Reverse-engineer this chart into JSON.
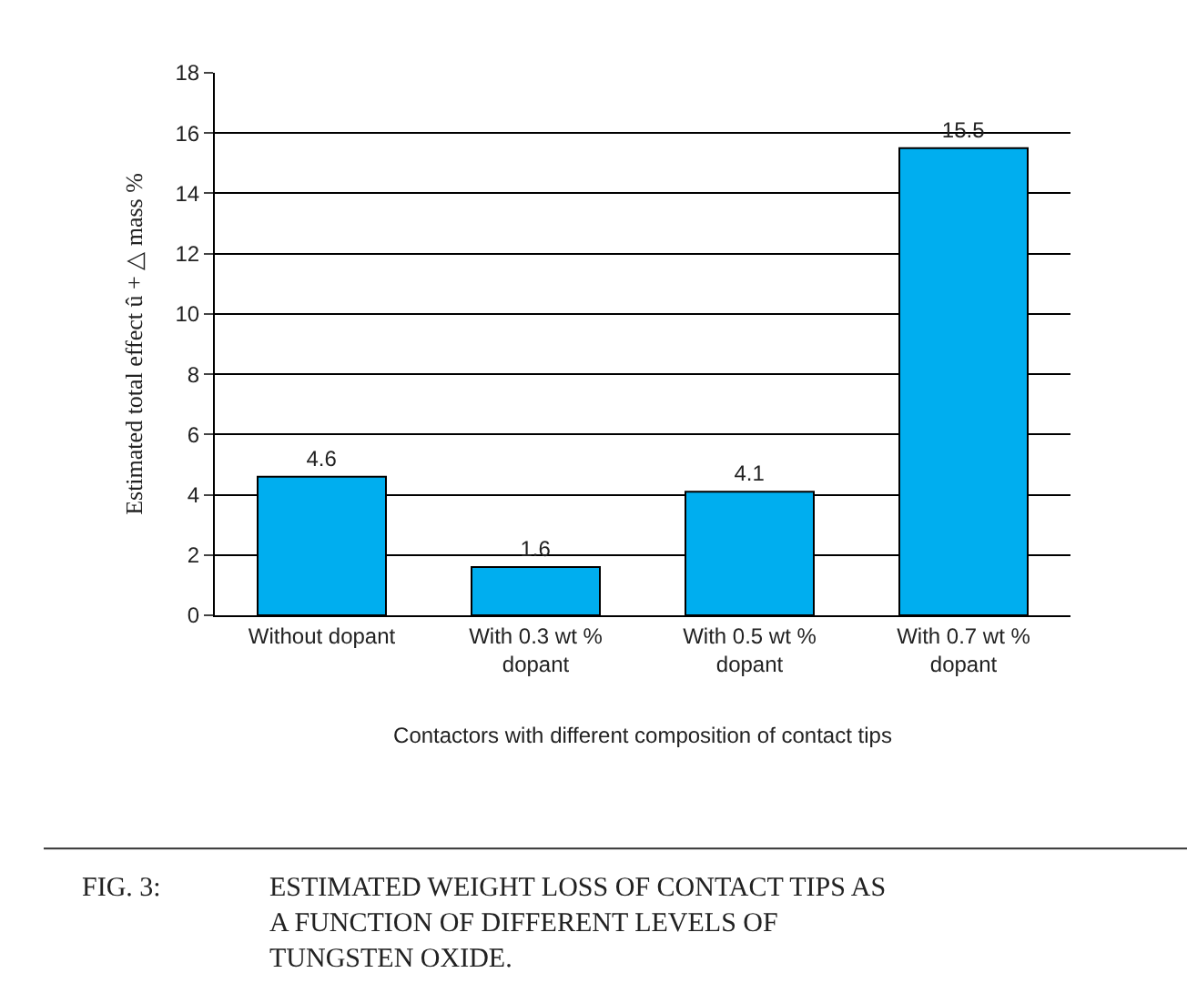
{
  "chart_data": {
    "type": "bar",
    "categories": [
      "Without dopant",
      "With 0.3 wt %\ndopant",
      "With 0.5 wt %\ndopant",
      "With 0.7 wt %\ndopant"
    ],
    "values": [
      4.6,
      1.6,
      4.1,
      15.5
    ],
    "color": "#00aeef",
    "data_labels": true,
    "ylim": [
      0,
      18
    ],
    "yticks": [
      0,
      2,
      4,
      6,
      8,
      10,
      12,
      14,
      16,
      18
    ],
    "grid": "y",
    "legend": false,
    "ylabel": "Estimated total effect û + △ mass %",
    "xlabel": "Contactors with different composition of contact tips",
    "annotations": [
      "FIG. 3:",
      "ESTIMATED WEIGHT LOSS OF CONTACT TIPS AS\nA FUNCTION OF DIFFERENT LEVELS OF\nTUNGSTEN OXIDE."
    ]
  }
}
